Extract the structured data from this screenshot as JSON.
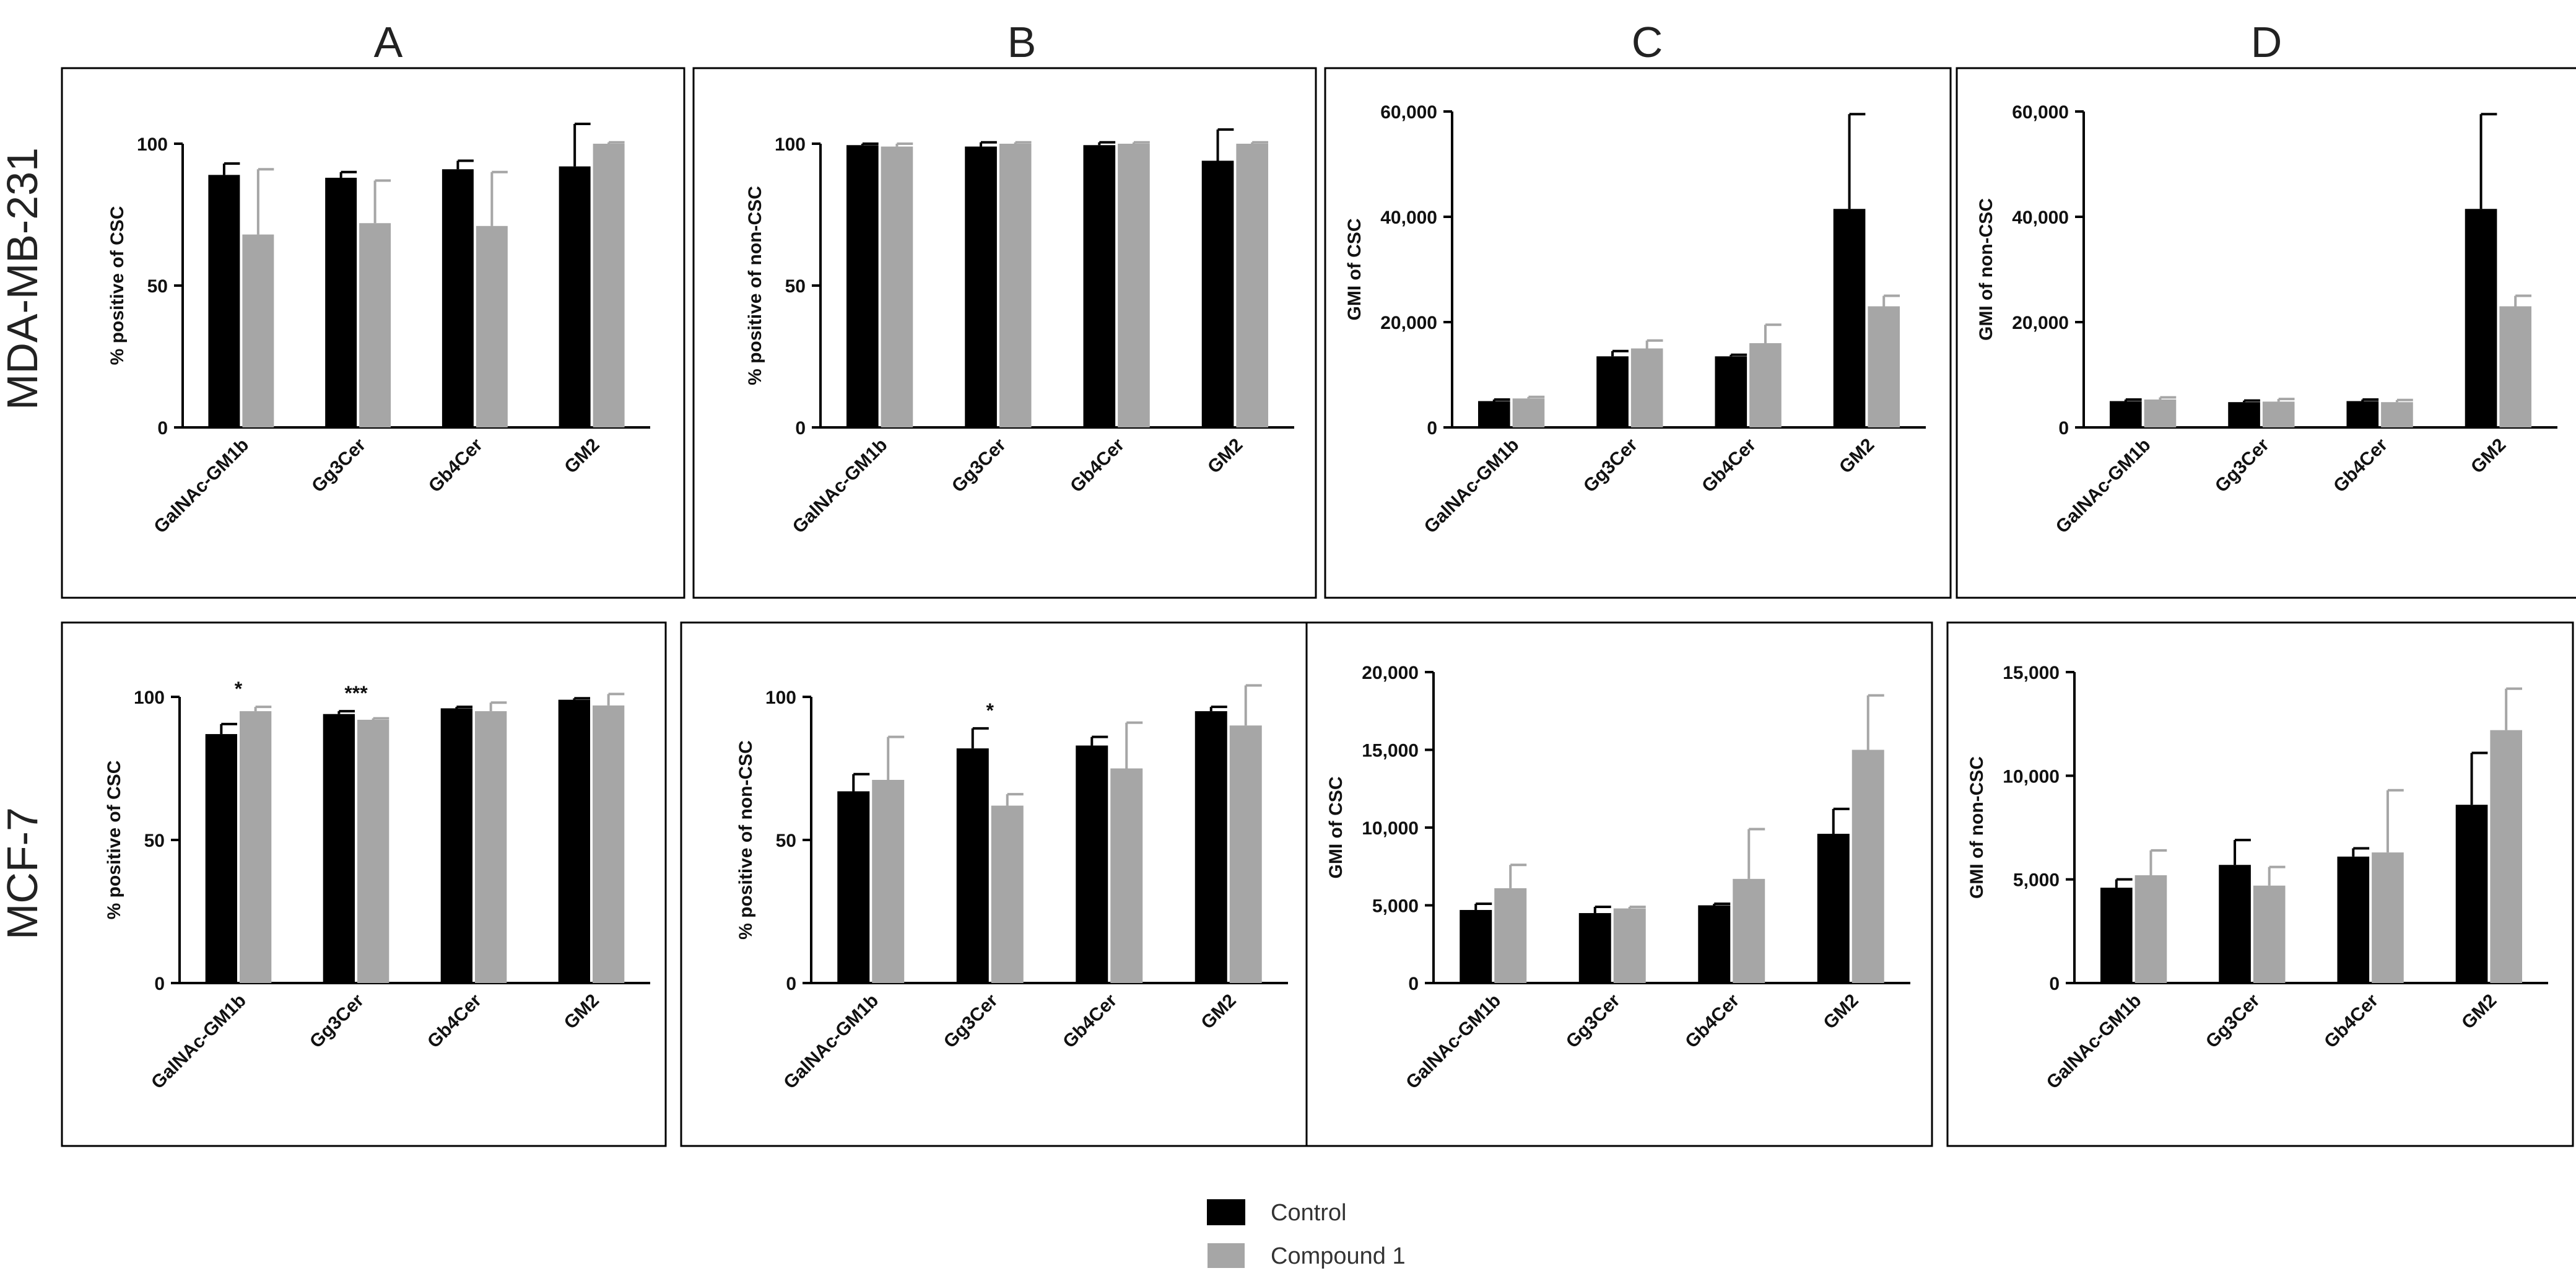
{
  "figure": {
    "column_titles": [
      "A",
      "B",
      "C",
      "D"
    ],
    "row_titles": [
      "MDA-MB-231",
      "MCF-7"
    ]
  },
  "legend": {
    "items": [
      {
        "label": "Control",
        "color": "#000000"
      },
      {
        "label": "Compound 1",
        "color": "#a6a6a6"
      }
    ]
  },
  "colors": {
    "control": "#000000",
    "compound": "#a6a6a6"
  },
  "chart_data": [
    {
      "id": "mda-a",
      "type": "bar",
      "ylabel": "% positive of CSC",
      "categories": [
        "GalNAc-GM1b",
        "Gg3Cer",
        "Gb4Cer",
        "GM2"
      ],
      "ylim": [
        0,
        100
      ],
      "yticks": [
        0,
        50,
        100
      ],
      "yticklabels": [
        "0",
        "50",
        "100"
      ],
      "series": [
        {
          "name": "Control",
          "values": [
            89,
            88,
            91,
            92
          ],
          "errors": [
            4,
            2,
            3,
            15
          ]
        },
        {
          "name": "Compound 1",
          "values": [
            68,
            72,
            71,
            100
          ],
          "errors": [
            23,
            15,
            19,
            0.5
          ]
        }
      ],
      "annotations": []
    },
    {
      "id": "mda-b",
      "type": "bar",
      "ylabel": "% positive of non-CSC",
      "categories": [
        "GalNAc-GM1b",
        "Gg3Cer",
        "Gb4Cer",
        "GM2"
      ],
      "ylim": [
        0,
        100
      ],
      "yticks": [
        0,
        50,
        100
      ],
      "yticklabels": [
        "0",
        "50",
        "100"
      ],
      "series": [
        {
          "name": "Control",
          "values": [
            99.5,
            99,
            99.5,
            94
          ],
          "errors": [
            0.5,
            1.5,
            1,
            11
          ]
        },
        {
          "name": "Compound 1",
          "values": [
            99,
            100,
            100,
            100
          ],
          "errors": [
            1,
            0.5,
            0.5,
            0.5
          ]
        }
      ],
      "annotations": []
    },
    {
      "id": "mda-c",
      "type": "bar",
      "ylabel": "GMI of CSC",
      "categories": [
        "GalNAc-GM1b",
        "Gg3Cer",
        "Gb4Cer",
        "GM2"
      ],
      "ylim": [
        0,
        60000
      ],
      "yticks": [
        0,
        20000,
        40000,
        60000
      ],
      "yticklabels": [
        "0",
        "20,000",
        "40,000",
        "60,000"
      ],
      "series": [
        {
          "name": "Control",
          "values": [
            5000,
            13500,
            13500,
            41500
          ],
          "errors": [
            300,
            1000,
            300,
            18000
          ]
        },
        {
          "name": "Compound 1",
          "values": [
            5500,
            15000,
            16000,
            23000
          ],
          "errors": [
            300,
            1500,
            3500,
            2000
          ]
        }
      ],
      "annotations": []
    },
    {
      "id": "mda-d",
      "type": "bar",
      "ylabel": "GMI of non-CSC",
      "categories": [
        "GalNAc-GM1b",
        "Gg3Cer",
        "Gb4Cer",
        "GM2"
      ],
      "ylim": [
        0,
        60000
      ],
      "yticks": [
        0,
        20000,
        40000,
        60000
      ],
      "yticklabels": [
        "0",
        "20,000",
        "40,000",
        "60,000"
      ],
      "series": [
        {
          "name": "Control",
          "values": [
            5000,
            4800,
            5000,
            41500
          ],
          "errors": [
            300,
            300,
            300,
            18000
          ]
        },
        {
          "name": "Compound 1",
          "values": [
            5300,
            4900,
            4800,
            23000
          ],
          "errors": [
            400,
            500,
            400,
            2000
          ]
        }
      ],
      "annotations": []
    },
    {
      "id": "mcf-a",
      "type": "bar",
      "ylabel": "% positive of CSC",
      "categories": [
        "GalNAc-GM1b",
        "Gg3Cer",
        "Gb4Cer",
        "GM2"
      ],
      "ylim": [
        0,
        100
      ],
      "yticks": [
        0,
        50,
        100
      ],
      "yticklabels": [
        "0",
        "50",
        "100"
      ],
      "series": [
        {
          "name": "Control",
          "values": [
            87,
            94,
            96,
            99
          ],
          "errors": [
            3.5,
            1,
            0.5,
            0.5
          ]
        },
        {
          "name": "Compound 1",
          "values": [
            95,
            92,
            95,
            97
          ],
          "errors": [
            1.5,
            0.5,
            3,
            4
          ]
        }
      ],
      "annotations": [
        {
          "category": 0,
          "text": "*"
        },
        {
          "category": 1,
          "text": "***"
        }
      ]
    },
    {
      "id": "mcf-b",
      "type": "bar",
      "ylabel": "% positive of non-CSC",
      "categories": [
        "GalNAc-GM1b",
        "Gg3Cer",
        "Gb4Cer",
        "GM2"
      ],
      "ylim": [
        0,
        100
      ],
      "yticks": [
        0,
        50,
        100
      ],
      "yticklabels": [
        "0",
        "50",
        "100"
      ],
      "series": [
        {
          "name": "Control",
          "values": [
            67,
            82,
            83,
            95
          ],
          "errors": [
            6,
            7,
            3,
            1.5
          ]
        },
        {
          "name": "Compound 1",
          "values": [
            71,
            62,
            75,
            90
          ],
          "errors": [
            15,
            4,
            16,
            14
          ]
        }
      ],
      "annotations": [
        {
          "category": 1,
          "text": "*"
        }
      ]
    },
    {
      "id": "mcf-c",
      "type": "bar",
      "ylabel": "GMI of CSC",
      "categories": [
        "GalNAc-GM1b",
        "Gg3Cer",
        "Gb4Cer",
        "GM2"
      ],
      "ylim": [
        0,
        20000
      ],
      "yticks": [
        0,
        5000,
        10000,
        15000,
        20000
      ],
      "yticklabels": [
        "0",
        "5,000",
        "10,000",
        "15,000",
        "20,000"
      ],
      "series": [
        {
          "name": "Control",
          "values": [
            4700,
            4500,
            5000,
            9600
          ],
          "errors": [
            400,
            400,
            100,
            1600
          ]
        },
        {
          "name": "Compound 1",
          "values": [
            6100,
            4800,
            6700,
            15000
          ],
          "errors": [
            1500,
            100,
            3200,
            3500
          ]
        }
      ],
      "annotations": []
    },
    {
      "id": "mcf-d",
      "type": "bar",
      "ylabel": "GMI of non-CSC",
      "categories": [
        "GalNAc-GM1b",
        "Gg3Cer",
        "Gb4Cer",
        "GM2"
      ],
      "ylim": [
        0,
        15000
      ],
      "yticks": [
        0,
        5000,
        10000,
        15000
      ],
      "yticklabels": [
        "0",
        "5,000",
        "10,000",
        "15,000"
      ],
      "series": [
        {
          "name": "Control",
          "values": [
            4600,
            5700,
            6100,
            8600
          ],
          "errors": [
            400,
            1200,
            400,
            2500
          ]
        },
        {
          "name": "Compound 1",
          "values": [
            5200,
            4700,
            6300,
            12200
          ],
          "errors": [
            1200,
            900,
            3000,
            2000
          ]
        }
      ],
      "annotations": []
    }
  ]
}
